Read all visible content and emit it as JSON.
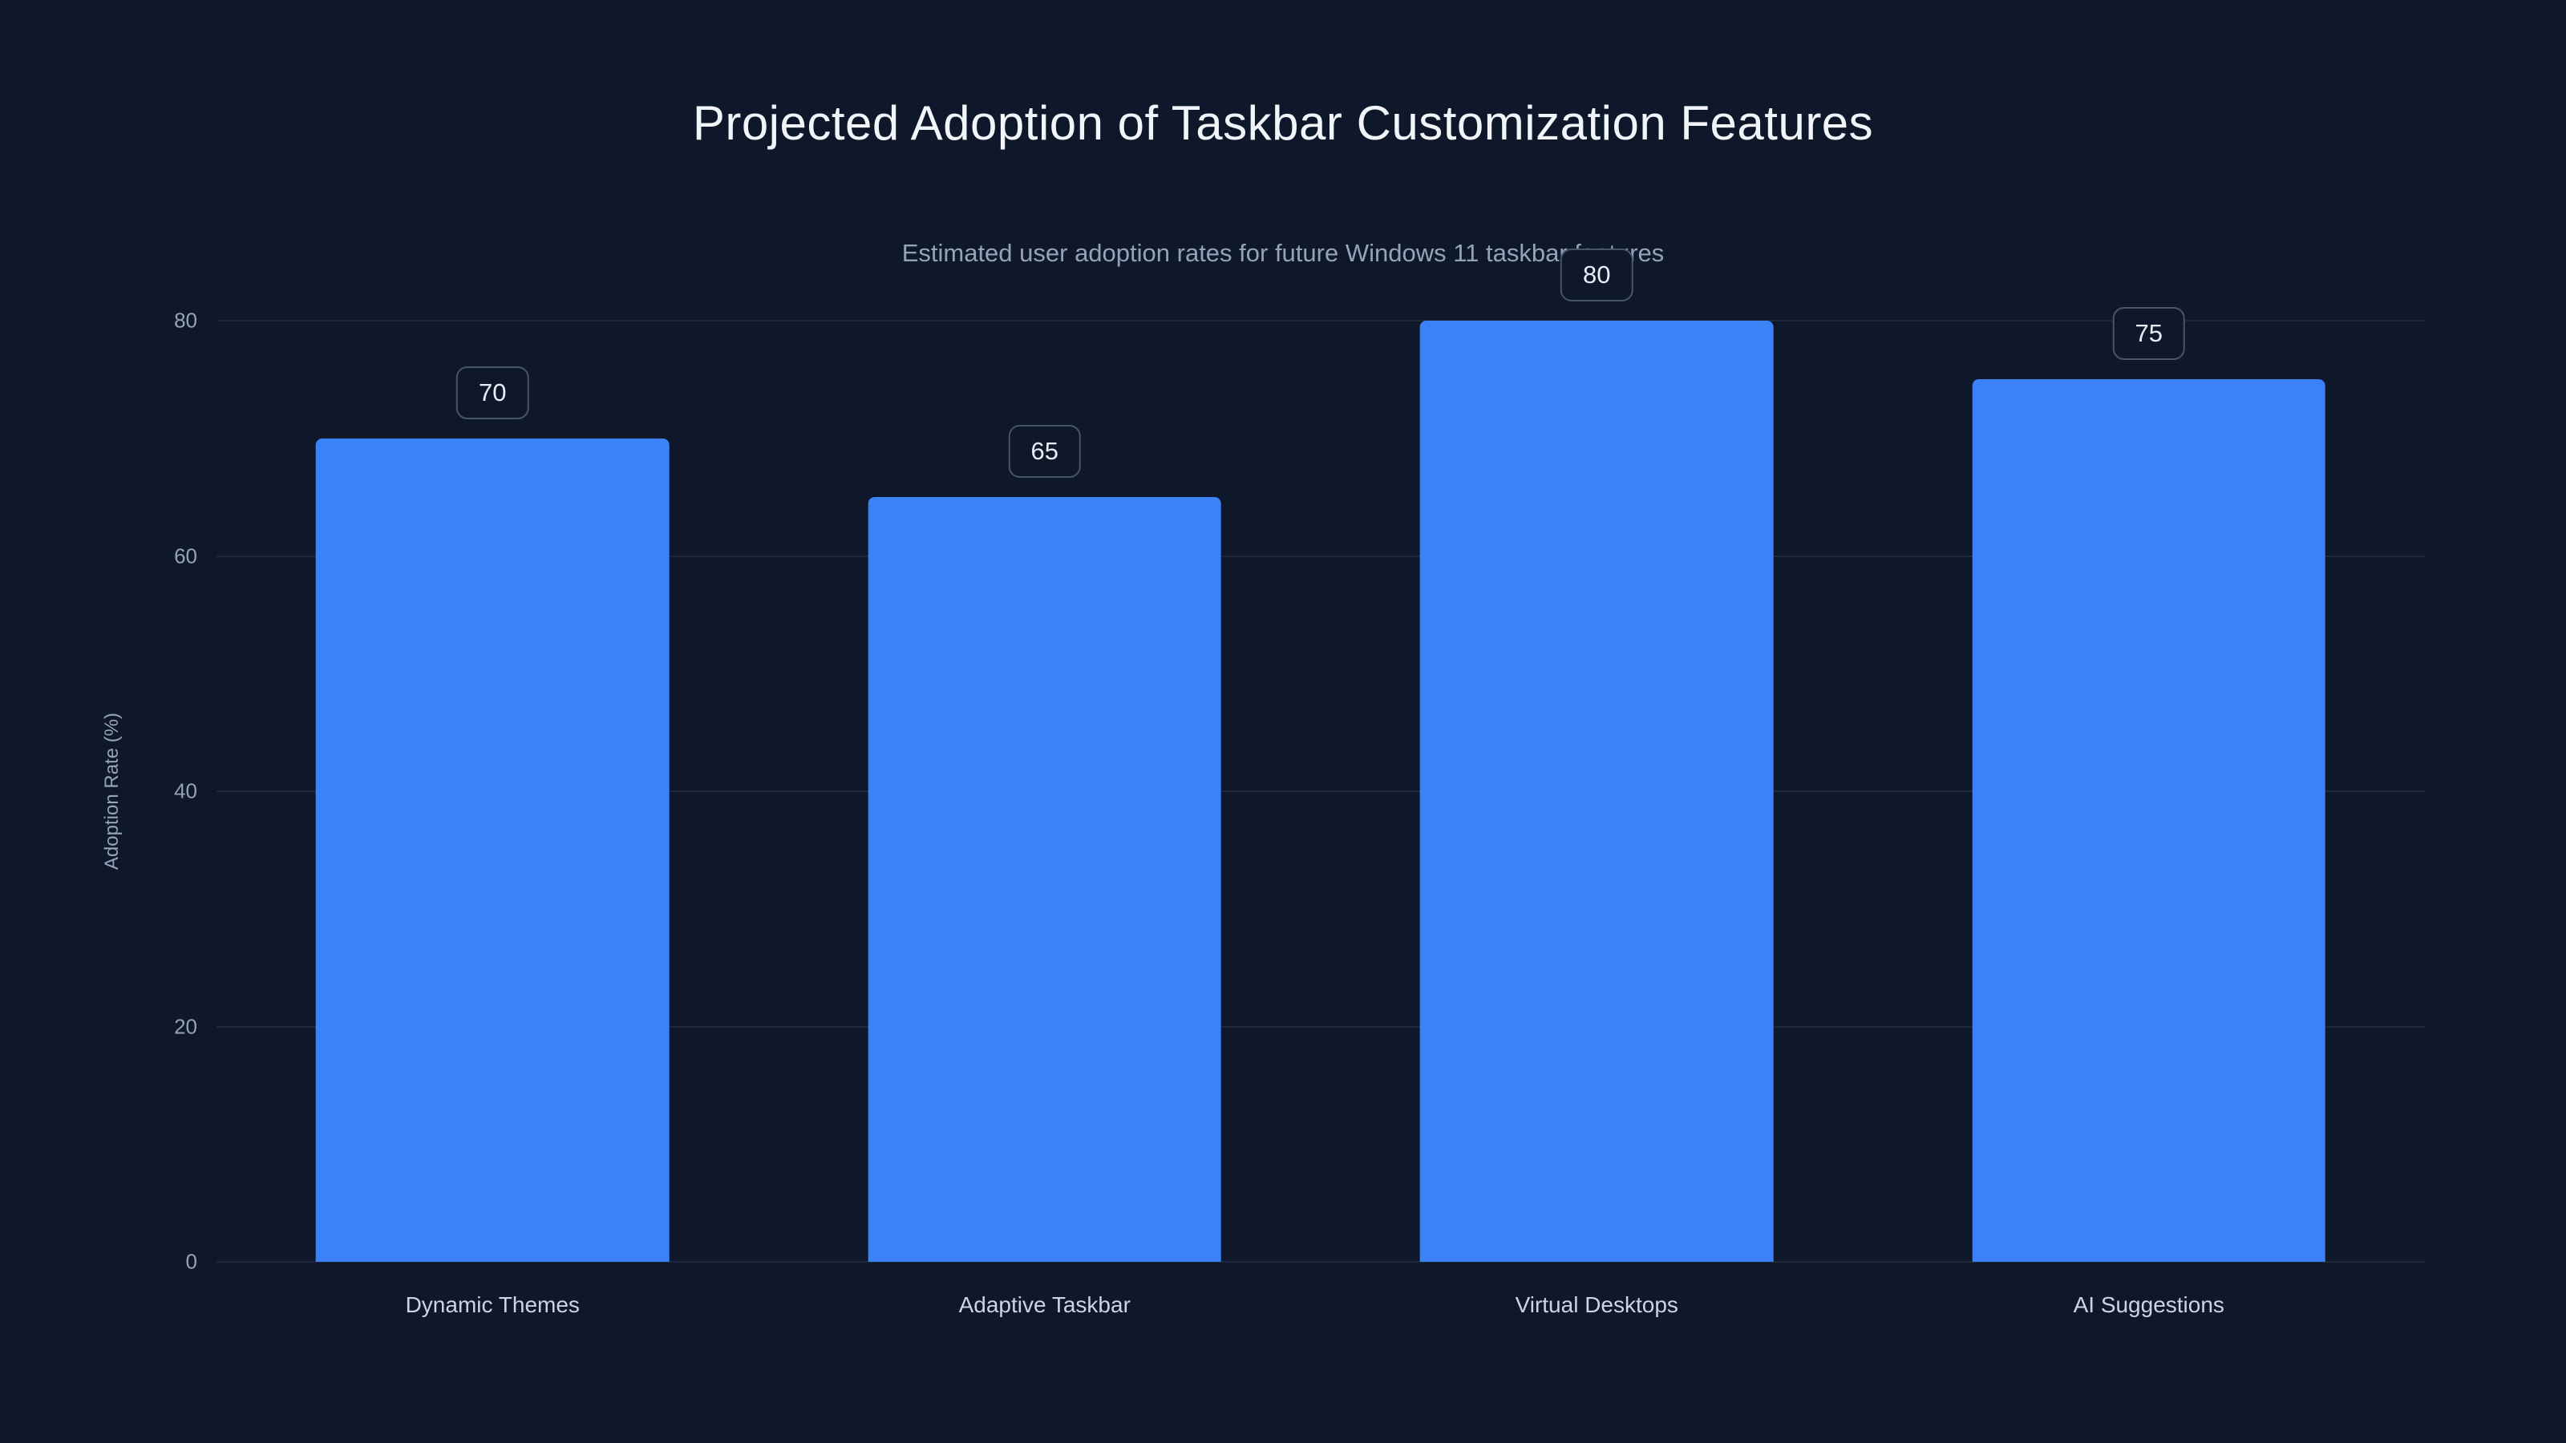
{
  "header": {
    "title": "Projected Adoption of Taskbar Customization Features",
    "subtitle": "Estimated user adoption rates for future Windows 11 taskbar features"
  },
  "chart_data": {
    "type": "bar",
    "title": "Projected Adoption of Taskbar Customization Features",
    "subtitle": "Estimated user adoption rates for future Windows 11 taskbar features",
    "categories": [
      "Dynamic Themes",
      "Adaptive Taskbar",
      "Virtual Desktops",
      "AI Suggestions"
    ],
    "values": [
      70,
      65,
      80,
      75
    ],
    "xlabel": "",
    "ylabel": "Adoption Rate (%)",
    "ylim": [
      0,
      80
    ],
    "yticks": [
      0,
      20,
      40,
      60,
      80
    ],
    "grid": true,
    "legend": false,
    "value_labels": true,
    "colors": {
      "background": "#0f172a",
      "bar": "#3b82f6",
      "grid": "#1e293b",
      "title": "#f1f5f9",
      "subtitle": "#94a3b8",
      "tick_label": "#94a3b8",
      "category_label": "#cbd5e1",
      "badge_border": "#475569",
      "badge_text": "#e8edf5"
    }
  }
}
